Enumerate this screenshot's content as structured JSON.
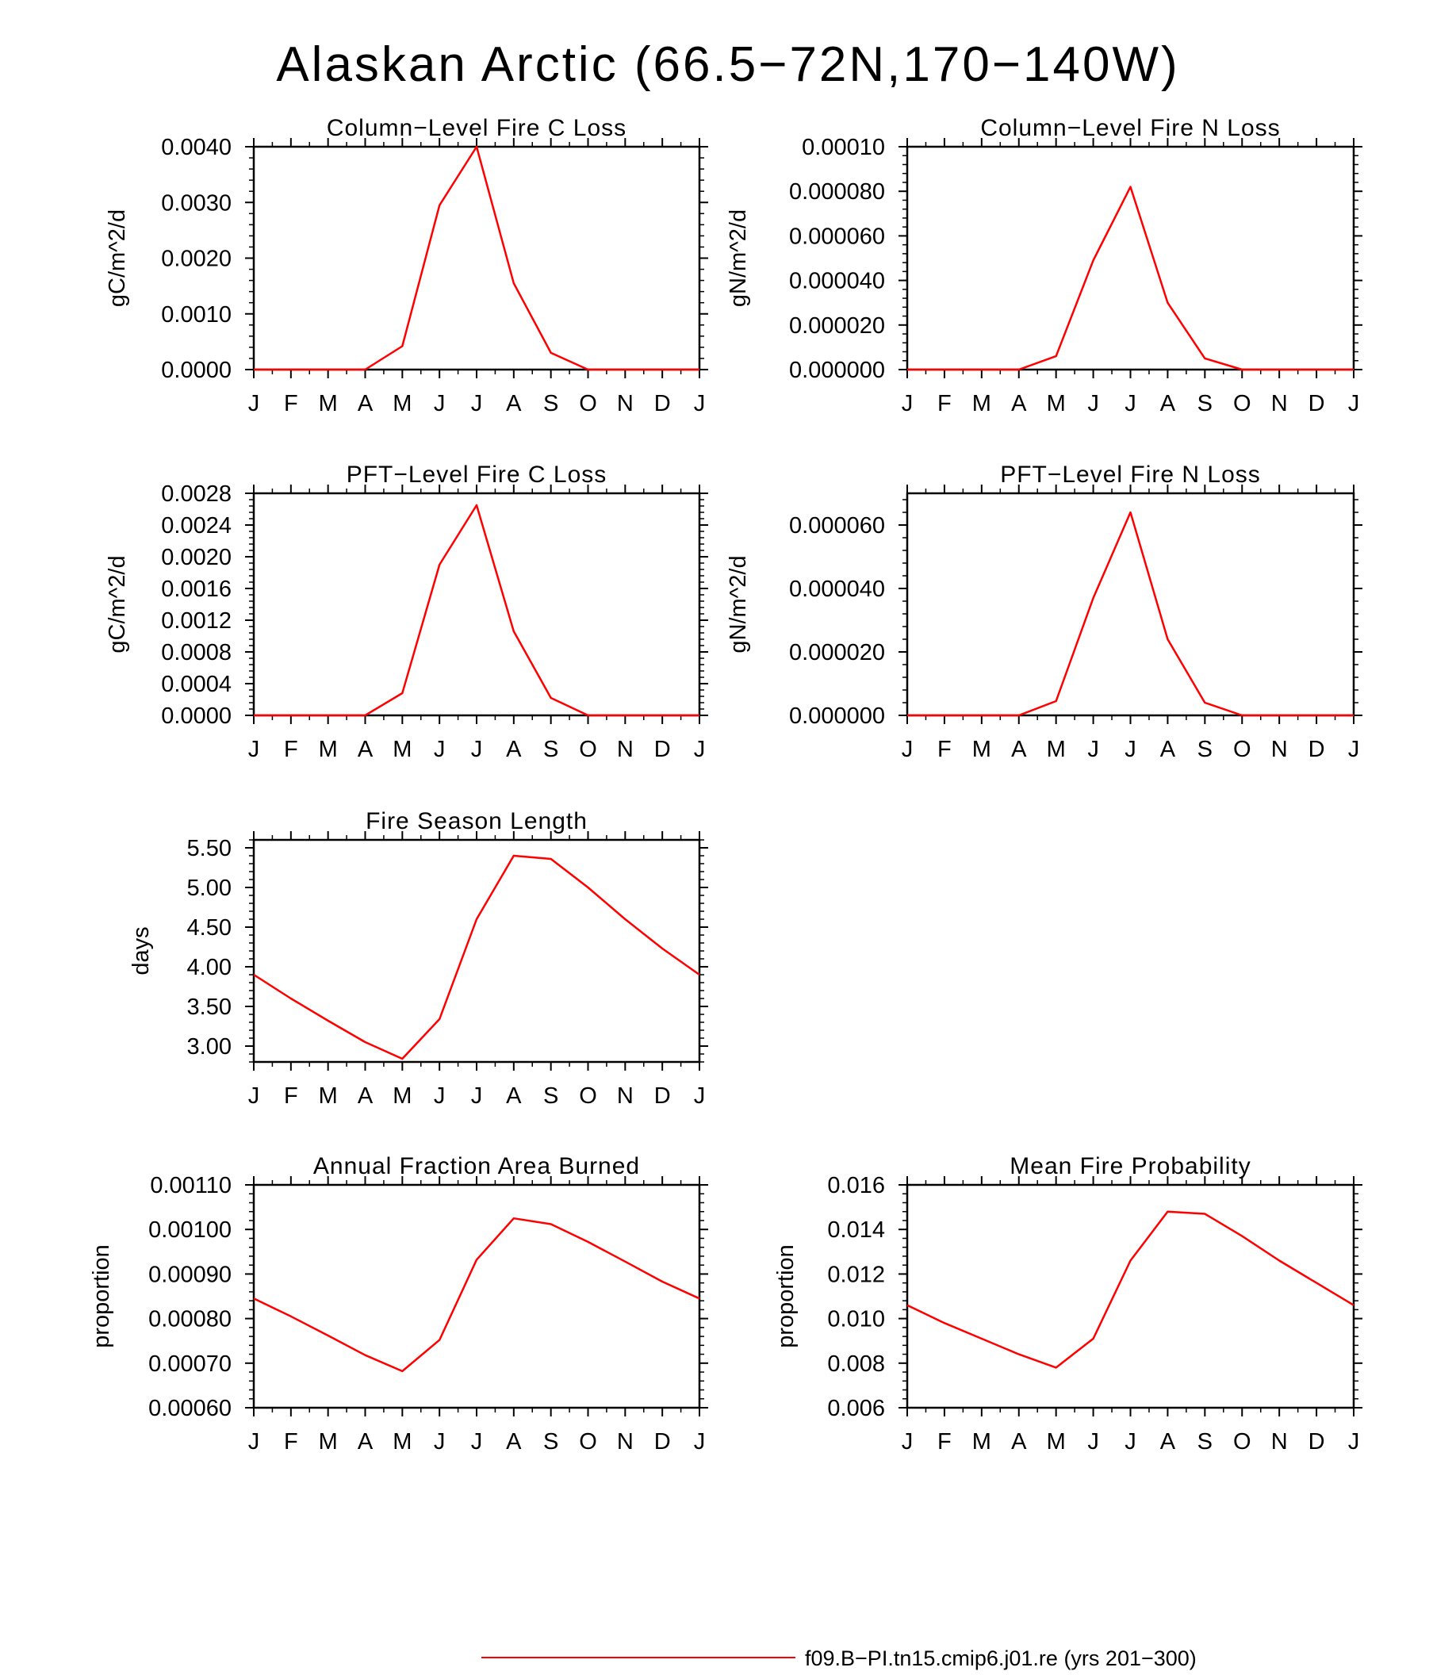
{
  "figure": {
    "title": "Alaskan Arctic (66.5−72N,170−140W)",
    "line_color": "#ff0000"
  },
  "legend": {
    "label": "f09.B−PI.tn15.cmip6.j01.re (yrs 201−300)"
  },
  "chart_data": [
    {
      "type": "line",
      "title": "Column−Level Fire C Loss",
      "ylabel": "gC/m^2/d",
      "x": [
        "J",
        "F",
        "M",
        "A",
        "M",
        "J",
        "J",
        "A",
        "S",
        "O",
        "N",
        "D",
        "J"
      ],
      "ylim": [
        0,
        0.004
      ],
      "yticks": [
        "0.0000",
        "0.0010",
        "0.0020",
        "0.0030",
        "0.0040"
      ],
      "series": [
        {
          "values": [
            0,
            0,
            0,
            0,
            0.00042,
            0.00295,
            0.004,
            0.00155,
            0.0003,
            0.0,
            0,
            0,
            0
          ]
        }
      ]
    },
    {
      "type": "line",
      "title": "Column−Level Fire N Loss",
      "ylabel": "gN/m^2/d",
      "x": [
        "J",
        "F",
        "M",
        "A",
        "M",
        "J",
        "J",
        "A",
        "S",
        "O",
        "N",
        "D",
        "J"
      ],
      "ylim": [
        0,
        0.0001
      ],
      "yticks": [
        "0.000000",
        "0.000020",
        "0.000040",
        "0.000060",
        "0.000080",
        "0.00010"
      ],
      "series": [
        {
          "values": [
            0,
            0,
            0,
            0,
            6e-06,
            4.9e-05,
            8.2e-05,
            3e-05,
            5e-06,
            0.0,
            0,
            0,
            0
          ]
        }
      ]
    },
    {
      "type": "line",
      "title": "PFT−Level Fire C Loss",
      "ylabel": "gC/m^2/d",
      "x": [
        "J",
        "F",
        "M",
        "A",
        "M",
        "J",
        "J",
        "A",
        "S",
        "O",
        "N",
        "D",
        "J"
      ],
      "ylim": [
        0,
        0.0028
      ],
      "yticks": [
        "0.0000",
        "0.0004",
        "0.0008",
        "0.0012",
        "0.0016",
        "0.0020",
        "0.0024",
        "0.0028"
      ],
      "series": [
        {
          "values": [
            0,
            0,
            0,
            0,
            0.00028,
            0.0019,
            0.00265,
            0.00106,
            0.00022,
            0.0,
            0,
            0,
            0
          ]
        }
      ]
    },
    {
      "type": "line",
      "title": "PFT−Level Fire N Loss",
      "ylabel": "gN/m^2/d",
      "x": [
        "J",
        "F",
        "M",
        "A",
        "M",
        "J",
        "J",
        "A",
        "S",
        "O",
        "N",
        "D",
        "J"
      ],
      "ylim": [
        0,
        7e-05
      ],
      "yticks": [
        "0.000000",
        "0.000020",
        "0.000040",
        "0.000060"
      ],
      "series": [
        {
          "values": [
            0,
            0,
            0,
            0,
            4.5e-06,
            3.7e-05,
            6.4e-05,
            2.4e-05,
            4e-06,
            0.0,
            0,
            0,
            0
          ]
        }
      ]
    },
    {
      "type": "line",
      "title": "Fire Season Length",
      "ylabel": "days",
      "x": [
        "J",
        "F",
        "M",
        "A",
        "M",
        "J",
        "J",
        "A",
        "S",
        "O",
        "N",
        "D",
        "J"
      ],
      "ylim": [
        2.8,
        5.6
      ],
      "yticks": [
        "3.00",
        "3.50",
        "4.00",
        "4.50",
        "5.00",
        "5.50"
      ],
      "series": [
        {
          "values": [
            3.9,
            3.6,
            3.32,
            3.05,
            2.84,
            3.34,
            4.6,
            5.4,
            5.36,
            5.0,
            4.6,
            4.23,
            3.9
          ]
        }
      ]
    },
    {
      "type": "line",
      "title": "Annual Fraction Area Burned",
      "ylabel": "proportion",
      "x": [
        "J",
        "F",
        "M",
        "A",
        "M",
        "J",
        "J",
        "A",
        "S",
        "O",
        "N",
        "D",
        "J"
      ],
      "ylim": [
        0.0006,
        0.0011
      ],
      "yticks": [
        "0.00060",
        "0.00070",
        "0.00080",
        "0.00090",
        "0.00100",
        "0.00110"
      ],
      "series": [
        {
          "values": [
            0.000845,
            0.000805,
            0.000762,
            0.000718,
            0.000682,
            0.000752,
            0.000932,
            0.001025,
            0.001012,
            0.000972,
            0.000928,
            0.000883,
            0.000845
          ]
        }
      ]
    },
    {
      "type": "line",
      "title": "Mean Fire Probability",
      "ylabel": "proportion",
      "x": [
        "J",
        "F",
        "M",
        "A",
        "M",
        "J",
        "J",
        "A",
        "S",
        "O",
        "N",
        "D",
        "J"
      ],
      "ylim": [
        0.006,
        0.016
      ],
      "yticks": [
        "0.006",
        "0.008",
        "0.010",
        "0.012",
        "0.014",
        "0.016"
      ],
      "series": [
        {
          "values": [
            0.0106,
            0.0098,
            0.0091,
            0.0084,
            0.0078,
            0.0091,
            0.0126,
            0.0148,
            0.0147,
            0.0137,
            0.0126,
            0.0116,
            0.0106
          ]
        }
      ]
    }
  ]
}
